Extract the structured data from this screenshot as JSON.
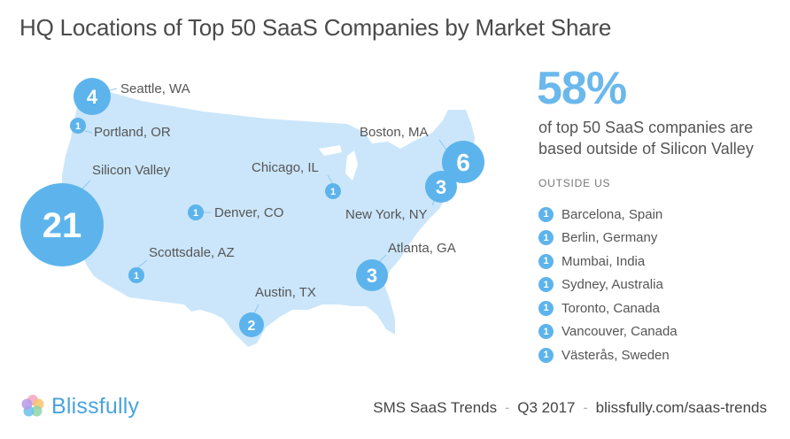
{
  "title": "HQ Locations of Top 50 SaaS Companies by Market Share",
  "colors": {
    "land": "#cbe6fa",
    "bubble": "#5db4ec",
    "accent": "#6bb8ec"
  },
  "locations": [
    {
      "name": "Seattle, WA",
      "count": "4"
    },
    {
      "name": "Portland, OR",
      "count": "1"
    },
    {
      "name": "Silicon Valley",
      "count": "21"
    },
    {
      "name": "Scottsdale, AZ",
      "count": "1"
    },
    {
      "name": "Denver, CO",
      "count": "1"
    },
    {
      "name": "Austin, TX",
      "count": "2"
    },
    {
      "name": "Chicago, IL",
      "count": "1"
    },
    {
      "name": "Atlanta, GA",
      "count": "3"
    },
    {
      "name": "New York, NY",
      "count": "3"
    },
    {
      "name": "Boston, MA",
      "count": "6"
    }
  ],
  "stat": {
    "percent": "58%",
    "description": "of top 50 SaaS companies are based outside of Silicon Valley"
  },
  "outside": {
    "title": "OUTSIDE US",
    "items": [
      {
        "count": "1",
        "name": "Barcelona, Spain"
      },
      {
        "count": "1",
        "name": "Berlin, Germany"
      },
      {
        "count": "1",
        "name": "Mumbai, India"
      },
      {
        "count": "1",
        "name": "Sydney, Australia"
      },
      {
        "count": "1",
        "name": "Toronto, Canada"
      },
      {
        "count": "1",
        "name": "Vancouver, Canada"
      },
      {
        "count": "1",
        "name": "Västerås, Sweden"
      }
    ]
  },
  "footer": {
    "brand": "Blissfully",
    "report": "SMS SaaS Trends",
    "sep1": "-",
    "quarter": "Q3 2017",
    "sep2": "-",
    "url": "blissfully.com/saas-trends"
  }
}
